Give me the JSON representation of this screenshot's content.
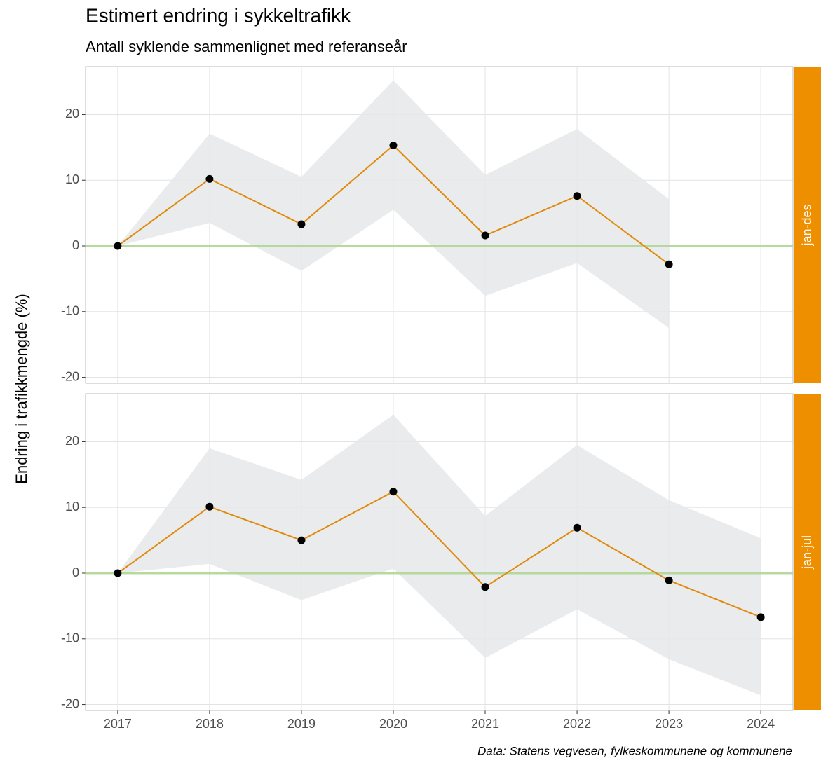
{
  "header": {
    "title": "Estimert endring i sykkeltrafikk",
    "subtitle": "Antall syklende sammenlignet med referanseår"
  },
  "y_axis_label": "Endring i trafikkmengde (%)",
  "caption": "Data: Statens vegvesen, fylkeskommunene og kommunene",
  "chart_data": [
    {
      "type": "line",
      "facet": "jan-des",
      "color": "#e08a0b",
      "band_color": "#e6e7e9",
      "reference_line": 0,
      "reference_color": "#a8d48a",
      "x": [
        2017,
        2018,
        2019,
        2020,
        2021,
        2022,
        2023
      ],
      "values": [
        0,
        10.2,
        3.3,
        15.3,
        1.6,
        7.6,
        -2.8
      ],
      "upper": [
        0,
        17.1,
        10.5,
        25.2,
        10.8,
        17.8,
        7.1
      ],
      "lower": [
        0,
        3.5,
        -3.8,
        5.5,
        -7.6,
        -2.6,
        -12.5
      ],
      "xlim": [
        2016.65,
        2024.35
      ],
      "xticks": [
        2017,
        2018,
        2019,
        2020,
        2021,
        2022,
        2023,
        2024
      ],
      "ylim": [
        -20.9,
        27.3
      ],
      "yticks": [
        -20,
        -10,
        0,
        10,
        20
      ],
      "grid": true
    },
    {
      "type": "line",
      "facet": "jan-jul",
      "color": "#e08a0b",
      "band_color": "#e6e7e9",
      "reference_line": 0,
      "reference_color": "#a8d48a",
      "x": [
        2017,
        2018,
        2019,
        2020,
        2021,
        2022,
        2023,
        2024
      ],
      "values": [
        0,
        10.1,
        5.0,
        12.4,
        -2.1,
        6.9,
        -1.1,
        -6.7
      ],
      "upper": [
        0,
        19.0,
        14.2,
        24.1,
        8.7,
        19.5,
        11.1,
        5.3
      ],
      "lower": [
        0,
        1.4,
        -4.1,
        0.7,
        -12.9,
        -5.5,
        -13.1,
        -18.6
      ],
      "xlim": [
        2016.65,
        2024.35
      ],
      "xticks": [
        2017,
        2018,
        2019,
        2020,
        2021,
        2022,
        2023,
        2024
      ],
      "ylim": [
        -20.9,
        27.3
      ],
      "yticks": [
        -20,
        -10,
        0,
        10,
        20
      ],
      "grid": true
    }
  ]
}
